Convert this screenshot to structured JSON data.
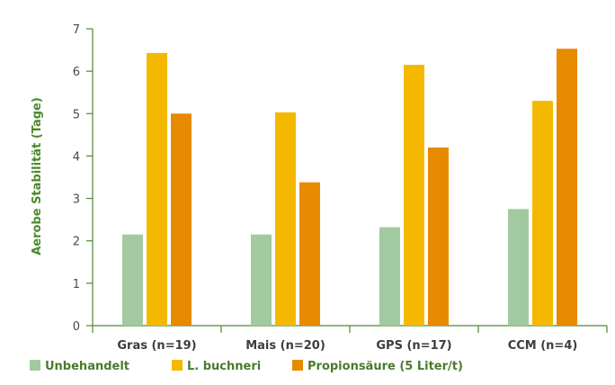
{
  "chart_data": {
    "type": "bar",
    "title": "",
    "xlabel": "",
    "ylabel": "Aerobe Stabilität (Tage)",
    "ylim": [
      0,
      7
    ],
    "yticks": [
      0,
      1,
      2,
      3,
      4,
      5,
      6,
      7
    ],
    "grid": false,
    "legend_position": "bottom-left",
    "categories": [
      "Gras (n=19)",
      "Mais (n=20)",
      "GPS (n=17)",
      "CCM (n=4)"
    ],
    "series": [
      {
        "name": "Unbehandelt",
        "color": "#a3c9a0",
        "values": [
          2.15,
          2.15,
          2.32,
          2.75
        ]
      },
      {
        "name": "L. buchneri",
        "color": "#f5b800",
        "values": [
          6.43,
          5.03,
          6.15,
          5.3
        ]
      },
      {
        "name": "Propionsäure (5 Liter/t)",
        "color": "#e88a00",
        "values": [
          5.0,
          3.38,
          4.2,
          6.53
        ]
      }
    ]
  }
}
